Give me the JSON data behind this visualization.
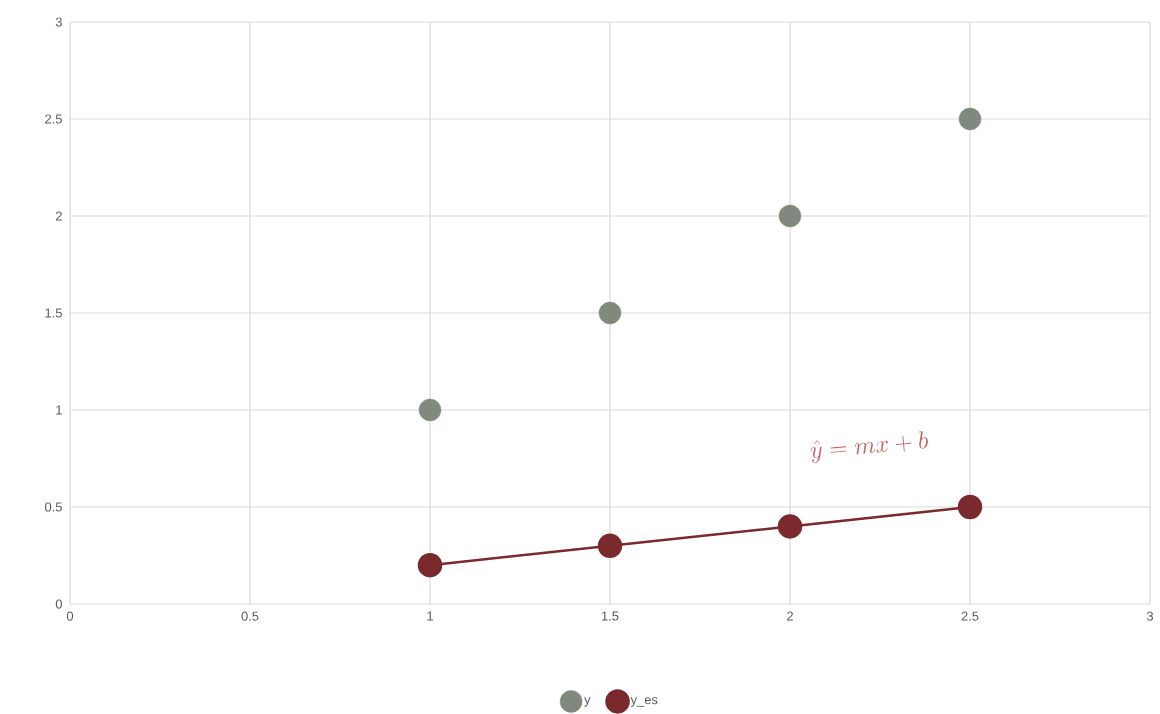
{
  "chart_data": {
    "type": "scatter",
    "x": [
      1,
      1.5,
      2,
      2.5
    ],
    "series": [
      {
        "name": "y",
        "color": "#7f897c",
        "values": [
          1,
          1.5,
          2,
          2.5
        ]
      },
      {
        "name": "y_es",
        "type": "line",
        "color": "#7a2a2c",
        "values": [
          0.2,
          0.3,
          0.4,
          0.5
        ]
      }
    ],
    "annotations": [
      "\\hat{y} = mx + b"
    ],
    "xlim": [
      0,
      3
    ],
    "ylim": [
      0,
      3
    ],
    "xticks": [
      0,
      0.5,
      1,
      1.5,
      2,
      2.5,
      3
    ],
    "yticks": [
      0,
      0.5,
      1,
      1.5,
      2,
      2.5,
      3
    ],
    "grid": true,
    "legend": "bottom",
    "marker": "circle"
  }
}
